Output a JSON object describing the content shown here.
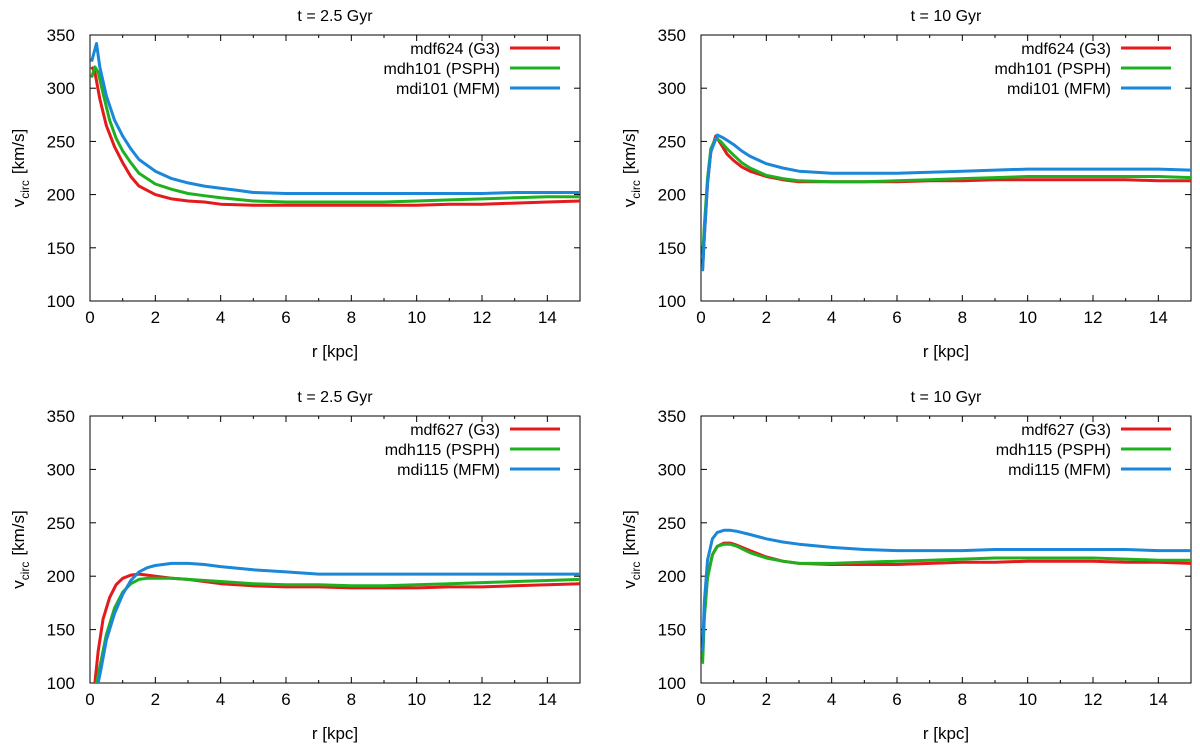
{
  "chart_data": [
    {
      "type": "line",
      "title": "t = 2.5 Gyr",
      "xlabel": "r [kpc]",
      "ylabel_main": "v",
      "ylabel_sub": "circ",
      "ylabel_unit": "[km/s]",
      "xlim": [
        0,
        15
      ],
      "ylim": [
        100,
        350
      ],
      "xticks": [
        "0",
        "2",
        "4",
        "6",
        "8",
        "10",
        "12",
        "14"
      ],
      "yticks": [
        "100",
        "150",
        "200",
        "250",
        "300",
        "350"
      ],
      "grid": false,
      "legend": "top-right",
      "series": [
        {
          "name": "mdf624 (G3)",
          "color": "#e41a1c",
          "x": [
            0.05,
            0.15,
            0.3,
            0.5,
            0.75,
            1,
            1.25,
            1.5,
            2,
            2.5,
            3,
            3.5,
            4,
            5,
            6,
            7,
            8,
            9,
            10,
            11,
            12,
            13,
            14,
            15
          ],
          "y": [
            320,
            315,
            290,
            265,
            245,
            230,
            217,
            208,
            200,
            196,
            194,
            193,
            191,
            190,
            190,
            190,
            190,
            190,
            190,
            191,
            191,
            192,
            193,
            194
          ]
        },
        {
          "name": "mdh101 (PSPH)",
          "color": "#1fb01f",
          "x": [
            0.05,
            0.15,
            0.25,
            0.4,
            0.6,
            0.8,
            1,
            1.25,
            1.5,
            2,
            2.5,
            3,
            3.5,
            4,
            5,
            6,
            7,
            8,
            9,
            10,
            11,
            12,
            13,
            14,
            15
          ],
          "y": [
            310,
            320,
            315,
            295,
            270,
            253,
            241,
            230,
            220,
            210,
            205,
            201,
            199,
            197,
            194,
            193,
            193,
            193,
            193,
            194,
            195,
            196,
            197,
            198,
            198
          ]
        },
        {
          "name": "mdi101 (MFM)",
          "color": "#1a87d9",
          "x": [
            0.05,
            0.2,
            0.3,
            0.5,
            0.75,
            1,
            1.25,
            1.5,
            2,
            2.5,
            3,
            3.5,
            4,
            4.5,
            5,
            6,
            7,
            8,
            9,
            10,
            11,
            12,
            13,
            14,
            15
          ],
          "y": [
            325,
            342,
            320,
            293,
            270,
            255,
            243,
            233,
            222,
            215,
            211,
            208,
            206,
            204,
            202,
            201,
            201,
            201,
            201,
            201,
            201,
            201,
            202,
            202,
            202
          ]
        }
      ]
    },
    {
      "type": "line",
      "title": "t = 10 Gyr",
      "xlabel": "r [kpc]",
      "ylabel_main": "v",
      "ylabel_sub": "circ",
      "ylabel_unit": "[km/s]",
      "xlim": [
        0,
        15
      ],
      "ylim": [
        100,
        350
      ],
      "xticks": [
        "0",
        "2",
        "4",
        "6",
        "8",
        "10",
        "12",
        "14"
      ],
      "yticks": [
        "100",
        "150",
        "200",
        "250",
        "300",
        "350"
      ],
      "grid": false,
      "legend": "top-right",
      "series": [
        {
          "name": "mdf624 (G3)",
          "color": "#e41a1c",
          "x": [
            0.05,
            0.1,
            0.2,
            0.3,
            0.45,
            0.6,
            0.8,
            1,
            1.25,
            1.5,
            2,
            2.5,
            3,
            4,
            5,
            6,
            7,
            8,
            9,
            10,
            11,
            12,
            13,
            14,
            15
          ],
          "y": [
            130,
            160,
            210,
            240,
            255,
            248,
            238,
            232,
            226,
            222,
            217,
            214,
            212,
            212,
            212,
            212,
            213,
            213,
            214,
            214,
            214,
            214,
            214,
            213,
            213
          ]
        },
        {
          "name": "mdh101 (PSPH)",
          "color": "#1fb01f",
          "x": [
            0.05,
            0.1,
            0.2,
            0.3,
            0.45,
            0.6,
            0.8,
            1,
            1.25,
            1.5,
            2,
            2.5,
            3,
            4,
            5,
            6,
            7,
            8,
            9,
            10,
            11,
            12,
            13,
            14,
            15
          ],
          "y": [
            140,
            170,
            215,
            243,
            253,
            250,
            243,
            237,
            230,
            225,
            218,
            215,
            213,
            212,
            212,
            213,
            214,
            215,
            216,
            217,
            217,
            217,
            217,
            217,
            216
          ]
        },
        {
          "name": "mdi101 (MFM)",
          "color": "#1a87d9",
          "x": [
            0.05,
            0.1,
            0.2,
            0.3,
            0.5,
            0.7,
            1,
            1.25,
            1.5,
            2,
            2.5,
            3,
            4,
            5,
            6,
            7,
            8,
            9,
            10,
            11,
            12,
            13,
            14,
            15
          ],
          "y": [
            128,
            160,
            210,
            240,
            256,
            253,
            247,
            241,
            236,
            229,
            225,
            222,
            220,
            220,
            220,
            221,
            222,
            223,
            224,
            224,
            224,
            224,
            224,
            223
          ]
        }
      ]
    },
    {
      "type": "line",
      "title": "t = 2.5 Gyr",
      "xlabel": "r [kpc]",
      "ylabel_main": "v",
      "ylabel_sub": "circ",
      "ylabel_unit": "[km/s]",
      "xlim": [
        0,
        15
      ],
      "ylim": [
        100,
        350
      ],
      "xticks": [
        "0",
        "2",
        "4",
        "6",
        "8",
        "10",
        "12",
        "14"
      ],
      "yticks": [
        "100",
        "150",
        "200",
        "250",
        "300",
        "350"
      ],
      "grid": false,
      "legend": "top-right",
      "series": [
        {
          "name": "mdf627 (G3)",
          "color": "#e41a1c",
          "x": [
            0.15,
            0.25,
            0.4,
            0.6,
            0.8,
            1,
            1.25,
            1.5,
            1.75,
            2,
            2.5,
            3,
            4,
            5,
            6,
            7,
            8,
            9,
            10,
            11,
            12,
            13,
            14,
            15
          ],
          "y": [
            100,
            130,
            160,
            180,
            192,
            198,
            201,
            202,
            201,
            200,
            198,
            197,
            193,
            191,
            190,
            190,
            189,
            189,
            189,
            190,
            190,
            191,
            192,
            193
          ]
        },
        {
          "name": "mdh115 (PSPH)",
          "color": "#1fb01f",
          "x": [
            0.2,
            0.3,
            0.5,
            0.75,
            1,
            1.25,
            1.5,
            1.75,
            2,
            2.5,
            3,
            4,
            5,
            6,
            7,
            8,
            9,
            10,
            11,
            12,
            13,
            14,
            15
          ],
          "y": [
            100,
            115,
            145,
            170,
            185,
            193,
            197,
            198,
            198,
            198,
            197,
            195,
            193,
            192,
            192,
            191,
            191,
            192,
            193,
            194,
            195,
            196,
            197
          ]
        },
        {
          "name": "mdi115 (MFM)",
          "color": "#1a87d9",
          "x": [
            0.25,
            0.35,
            0.5,
            0.75,
            1,
            1.25,
            1.5,
            1.75,
            2,
            2.5,
            3,
            3.5,
            4,
            5,
            6,
            7,
            8,
            9,
            10,
            11,
            12,
            13,
            14,
            15
          ],
          "y": [
            100,
            115,
            140,
            165,
            183,
            196,
            204,
            208,
            210,
            212,
            212,
            211,
            209,
            206,
            204,
            202,
            202,
            202,
            202,
            202,
            202,
            202,
            202,
            202
          ]
        }
      ]
    },
    {
      "type": "line",
      "title": "t = 10 Gyr",
      "xlabel": "r [kpc]",
      "ylabel_main": "v",
      "ylabel_sub": "circ",
      "ylabel_unit": "[km/s]",
      "xlim": [
        0,
        15
      ],
      "ylim": [
        100,
        350
      ],
      "xticks": [
        "0",
        "2",
        "4",
        "6",
        "8",
        "10",
        "12",
        "14"
      ],
      "yticks": [
        "100",
        "150",
        "200",
        "250",
        "300",
        "350"
      ],
      "grid": false,
      "legend": "top-right",
      "series": [
        {
          "name": "mdf627 (G3)",
          "color": "#e41a1c",
          "x": [
            0.05,
            0.1,
            0.2,
            0.35,
            0.5,
            0.7,
            0.9,
            1.1,
            1.5,
            2,
            2.5,
            3,
            4,
            5,
            6,
            7,
            8,
            9,
            10,
            11,
            12,
            13,
            14,
            15
          ],
          "y": [
            125,
            165,
            200,
            220,
            228,
            231,
            231,
            229,
            224,
            218,
            214,
            212,
            211,
            211,
            211,
            212,
            213,
            213,
            214,
            214,
            214,
            213,
            213,
            212
          ]
        },
        {
          "name": "mdh115 (PSPH)",
          "color": "#1fb01f",
          "x": [
            0.05,
            0.1,
            0.2,
            0.35,
            0.5,
            0.7,
            0.9,
            1.1,
            1.5,
            2,
            2.5,
            3,
            4,
            5,
            6,
            7,
            8,
            9,
            10,
            11,
            12,
            13,
            14,
            15
          ],
          "y": [
            118,
            160,
            198,
            220,
            228,
            230,
            230,
            228,
            222,
            217,
            214,
            212,
            212,
            213,
            214,
            215,
            216,
            217,
            217,
            217,
            217,
            216,
            215,
            215
          ]
        },
        {
          "name": "mdi115 (MFM)",
          "color": "#1a87d9",
          "x": [
            0.05,
            0.1,
            0.2,
            0.35,
            0.5,
            0.7,
            0.9,
            1.1,
            1.5,
            2,
            2.5,
            3,
            4,
            5,
            6,
            7,
            8,
            9,
            10,
            11,
            12,
            13,
            14,
            15
          ],
          "y": [
            130,
            175,
            215,
            235,
            241,
            243,
            243,
            242,
            239,
            235,
            232,
            230,
            227,
            225,
            224,
            224,
            224,
            225,
            225,
            225,
            225,
            225,
            224,
            224
          ]
        }
      ]
    }
  ]
}
